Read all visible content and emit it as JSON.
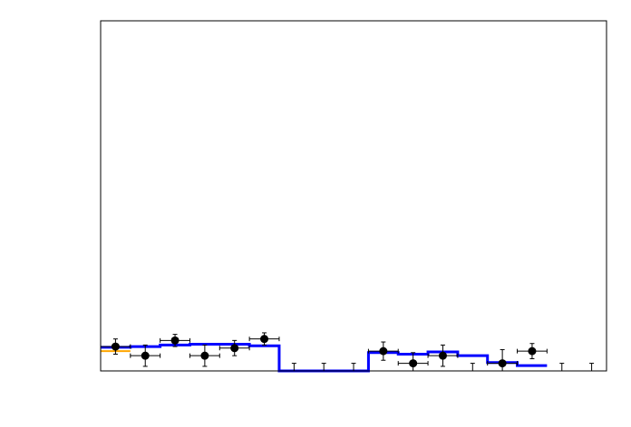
{
  "chart_data": {
    "type": "scatter",
    "title": "",
    "xlabel": "",
    "ylabel": "",
    "xlim": [
      0,
      34
    ],
    "ylim": [
      0,
      23
    ],
    "grid": false,
    "points": [
      {
        "x": 1,
        "y": 1.6,
        "xerr": 1,
        "yerr": 0.5
      },
      {
        "x": 3,
        "y": 1.0,
        "xerr": 1,
        "yerr": 0.7
      },
      {
        "x": 5,
        "y": 2.0,
        "xerr": 1,
        "yerr": 0.4
      },
      {
        "x": 7,
        "y": 1.0,
        "xerr": 1,
        "yerr": 0.7
      },
      {
        "x": 9,
        "y": 1.5,
        "xerr": 1,
        "yerr": 0.5
      },
      {
        "x": 11,
        "y": 2.1,
        "xerr": 1,
        "yerr": 0.4
      },
      {
        "x": 19,
        "y": 1.3,
        "xerr": 1,
        "yerr": 0.6
      },
      {
        "x": 21,
        "y": 0.5,
        "xerr": 1,
        "yerr": 0.7
      },
      {
        "x": 23,
        "y": 1.0,
        "xerr": 1,
        "yerr": 0.7
      },
      {
        "x": 27,
        "y": 0.5,
        "xerr": 1,
        "yerr": 0.9
      },
      {
        "x": 29,
        "y": 1.3,
        "xerr": 1,
        "yerr": 0.5
      }
    ],
    "empty_bins_upper_err": [
      {
        "x": 13,
        "yerr": 0.5
      },
      {
        "x": 15,
        "yerr": 0.5
      },
      {
        "x": 17,
        "yerr": 0.5
      },
      {
        "x": 25,
        "yerr": 0.5
      },
      {
        "x": 31,
        "yerr": 0.5
      },
      {
        "x": 33,
        "yerr": 0.5
      }
    ],
    "series": [
      {
        "color": "#0000ff",
        "edges": [
          0,
          2,
          4,
          6,
          8,
          10,
          12,
          14,
          16,
          18,
          20,
          22,
          24,
          26,
          28,
          30
        ],
        "values": [
          1.55,
          1.6,
          1.7,
          1.75,
          1.75,
          1.65,
          0,
          0,
          0,
          1.2,
          1.1,
          1.25,
          1.0,
          0.55,
          0.35
        ]
      },
      {
        "color": "#ffa500",
        "edges": [
          0,
          2
        ],
        "values": [
          1.3
        ]
      }
    ]
  }
}
